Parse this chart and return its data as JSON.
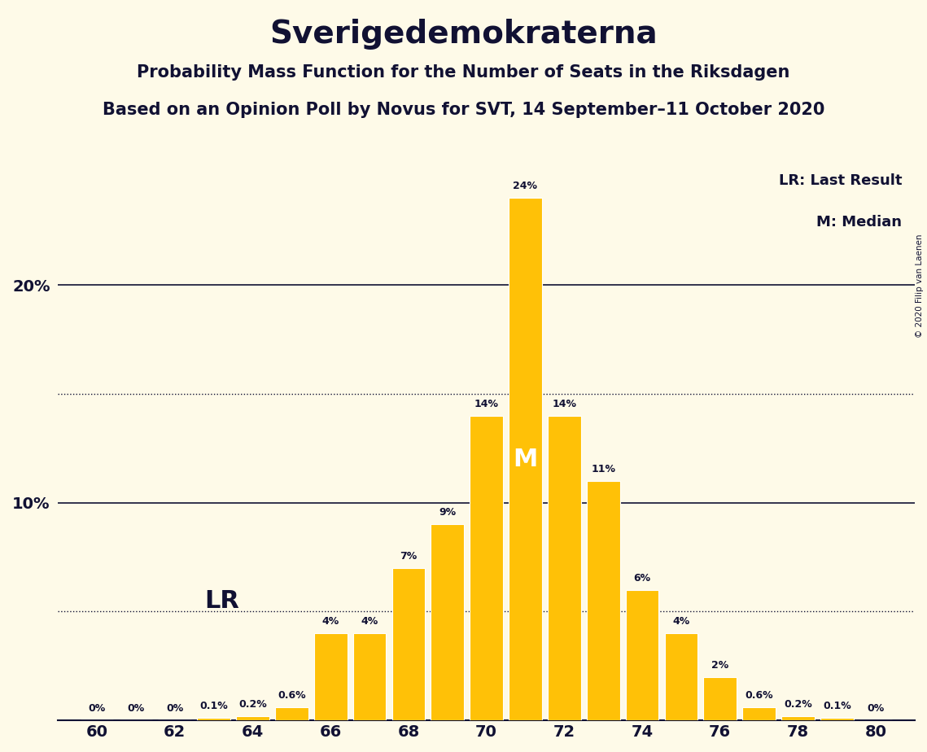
{
  "title": "Sverigedemokraterna",
  "subtitle1": "Probability Mass Function for the Number of Seats in the Riksdagen",
  "subtitle2": "Based on an Opinion Poll by Novus for SVT, 14 September–11 October 2020",
  "copyright": "© 2020 Filip van Laenen",
  "seats": [
    60,
    61,
    62,
    63,
    64,
    65,
    66,
    67,
    68,
    69,
    70,
    71,
    72,
    73,
    74,
    75,
    76,
    77,
    78,
    79,
    80
  ],
  "probs": [
    0.0,
    0.0,
    0.0,
    0.1,
    0.2,
    0.6,
    4.0,
    4.0,
    7.0,
    9.0,
    14.0,
    24.0,
    14.0,
    11.0,
    6.0,
    4.0,
    2.0,
    0.6,
    0.2,
    0.1,
    0.0
  ],
  "labels": [
    "0%",
    "0%",
    "0%",
    "0.1%",
    "0.2%",
    "0.6%",
    "4%",
    "4%",
    "7%",
    "9%",
    "14%",
    "24%",
    "14%",
    "11%",
    "6%",
    "4%",
    "2%",
    "0.6%",
    "0.2%",
    "0.1%",
    "0%"
  ],
  "bar_color": "#FFC107",
  "background_color": "#FEFAE8",
  "text_color": "#111133",
  "median_seat": 71,
  "lr_seat": 62,
  "lr_label": "LR",
  "median_label": "M",
  "hline_solid": [
    10.0,
    20.0
  ],
  "hline_dotted": [
    5.0,
    15.0
  ],
  "ylim": [
    0,
    27
  ],
  "xlim": [
    59.0,
    81.0
  ],
  "xticks": [
    60,
    62,
    64,
    66,
    68,
    70,
    72,
    74,
    76,
    78,
    80
  ],
  "legend_lr": "LR: Last Result",
  "legend_m": "M: Median"
}
